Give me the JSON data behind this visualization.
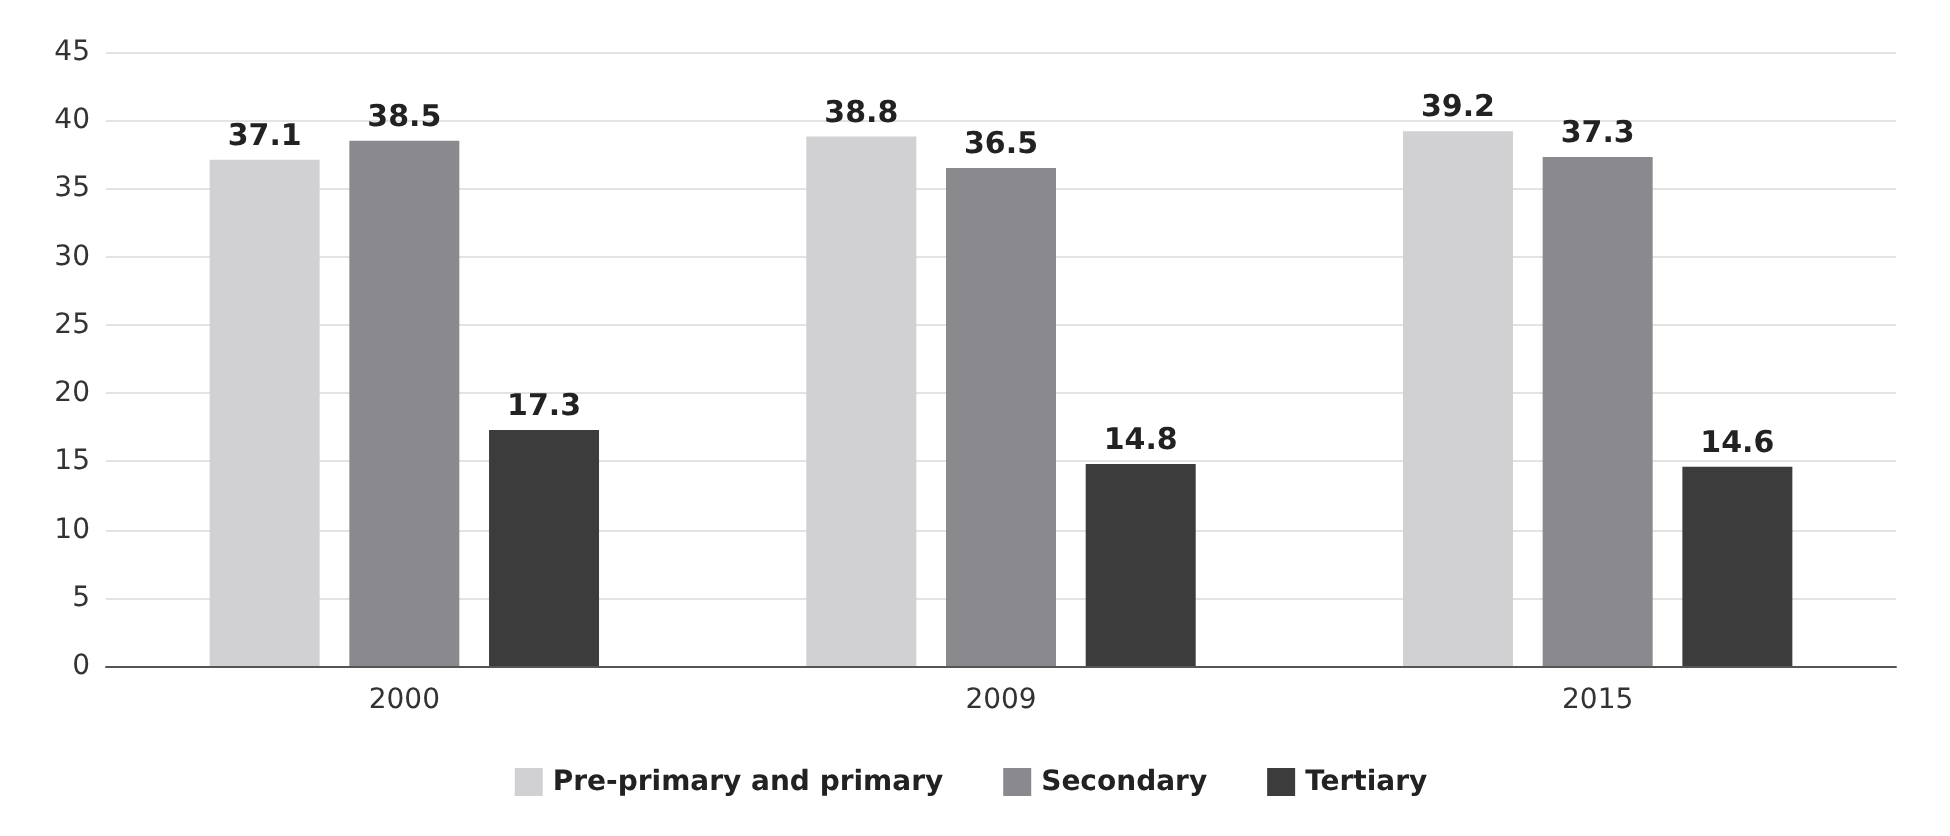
{
  "chart_data": {
    "type": "bar",
    "categories": [
      "2000",
      "2009",
      "2015"
    ],
    "series": [
      {
        "name": "Pre-primary and primary",
        "color": "#d1d1d3",
        "values": [
          37.1,
          38.8,
          39.2
        ]
      },
      {
        "name": "Secondary",
        "color": "#8a8a8e",
        "values": [
          38.5,
          36.5,
          37.3
        ]
      },
      {
        "name": "Tertiary",
        "color": "#3c3c3c",
        "values": [
          17.3,
          14.8,
          14.6
        ]
      }
    ],
    "ylim": [
      0,
      45
    ],
    "yticks": [
      0,
      5,
      10,
      15,
      20,
      25,
      30,
      35,
      40,
      45
    ],
    "grid": "y",
    "legend": "bottom",
    "data_labels": true
  }
}
